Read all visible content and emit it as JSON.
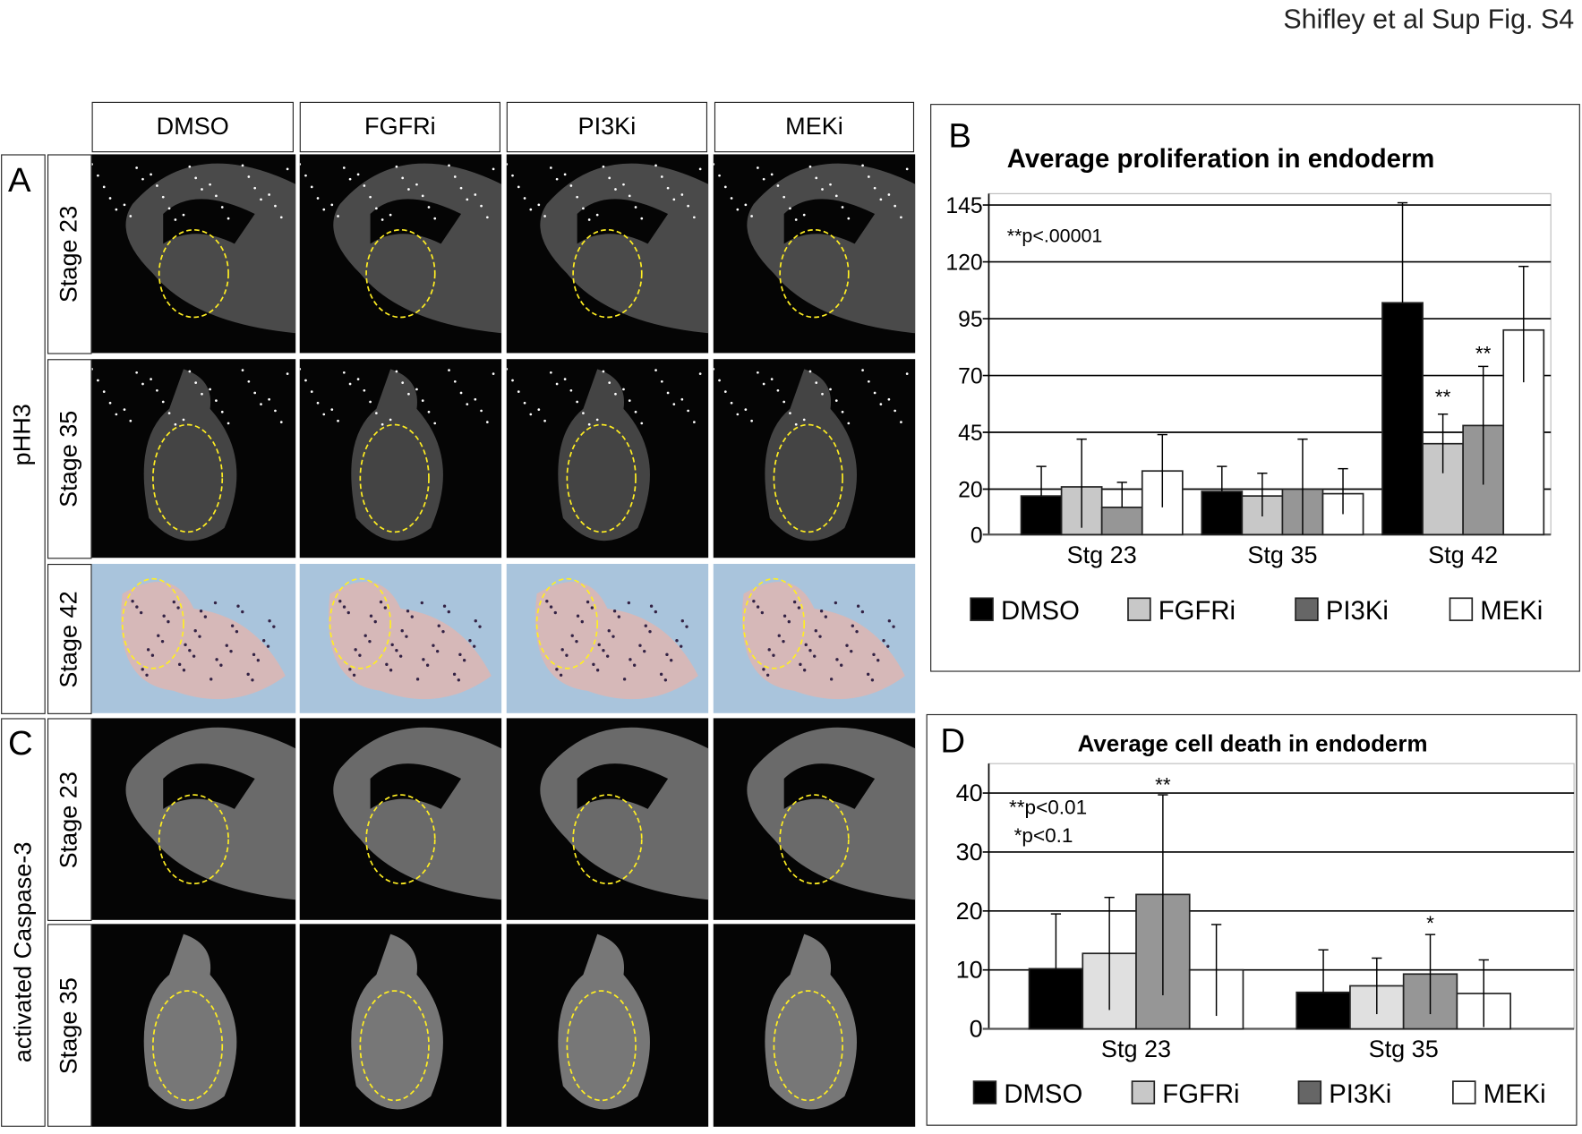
{
  "figure_title": "Shifley et al Sup Fig. S4",
  "columns": [
    "DMSO",
    "FGFRi",
    "PI3Ki",
    "MEKi"
  ],
  "panel_a": {
    "letter": "A",
    "marker": "pHH3",
    "rows": [
      "Stage 23",
      "Stage 35",
      "Stage 42"
    ]
  },
  "panel_c": {
    "letter": "C",
    "marker": "activated Caspase-3",
    "rows": [
      "Stage 23",
      "Stage 35"
    ]
  },
  "colors": {
    "DMSO": "#000000",
    "FGFRi": "#c8c8c8",
    "PI3Ki": "#969696",
    "MEKi": "#ffffff",
    "outline": "#ffee22"
  },
  "chart_data": [
    {
      "panel": "B",
      "type": "bar",
      "title": "Average proliferation in endoderm",
      "categories": [
        "Stg 23",
        "Stg 35",
        "Stg 42"
      ],
      "yticks": [
        0,
        20,
        45,
        70,
        95,
        120,
        145
      ],
      "ylim": [
        0,
        150
      ],
      "grid": true,
      "legend_placement": "bottom",
      "annotation": "**p<.00001",
      "series": [
        {
          "name": "DMSO",
          "values": [
            17,
            19,
            102
          ],
          "err_low": [
            17,
            19,
            102
          ],
          "err_high": [
            30,
            30,
            146
          ]
        },
        {
          "name": "FGFRi",
          "values": [
            21,
            17,
            40
          ],
          "err_low": [
            3,
            8,
            27
          ],
          "err_high": [
            42,
            27,
            53
          ]
        },
        {
          "name": "PI3Ki",
          "values": [
            12,
            20,
            48
          ],
          "err_low": [
            12,
            0,
            22
          ],
          "err_high": [
            23,
            42,
            74
          ]
        },
        {
          "name": "MEKi",
          "values": [
            28,
            18,
            90
          ],
          "err_low": [
            12,
            9,
            67
          ],
          "err_high": [
            44,
            29,
            118
          ]
        }
      ],
      "significance": [
        {
          "category": "Stg 42",
          "series": "FGFRi",
          "label": "**"
        },
        {
          "category": "Stg 42",
          "series": "PI3Ki",
          "label": "**"
        }
      ]
    },
    {
      "panel": "D",
      "type": "bar",
      "title": "Average cell death in endoderm",
      "categories": [
        "Stg 23",
        "Stg 35"
      ],
      "yticks": [
        0,
        10,
        20,
        30,
        40
      ],
      "ylim": [
        0,
        45
      ],
      "grid": true,
      "legend_placement": "bottom",
      "annotation": "**p<0.01",
      "annotation2": "*p<0.1",
      "series": [
        {
          "name": "DMSO",
          "values": [
            10.2,
            6.2
          ],
          "err_low": [
            10.2,
            6.2
          ],
          "err_high": [
            19.5,
            13.4
          ]
        },
        {
          "name": "FGFRi",
          "values": [
            12.8,
            7.3
          ],
          "err_low": [
            3.2,
            2.5
          ],
          "err_high": [
            22.3,
            12
          ]
        },
        {
          "name": "PI3Ki",
          "values": [
            22.8,
            9.3
          ],
          "err_low": [
            5.7,
            2.5
          ],
          "err_high": [
            39.7,
            16
          ]
        },
        {
          "name": "MEKi",
          "values": [
            10,
            6
          ],
          "err_low": [
            2.2,
            0.3
          ],
          "err_high": [
            17.7,
            11.7
          ]
        }
      ],
      "significance": [
        {
          "category": "Stg 23",
          "series": "PI3Ki",
          "label": "**"
        },
        {
          "category": "Stg 35",
          "series": "PI3Ki",
          "label": "*"
        }
      ]
    }
  ]
}
